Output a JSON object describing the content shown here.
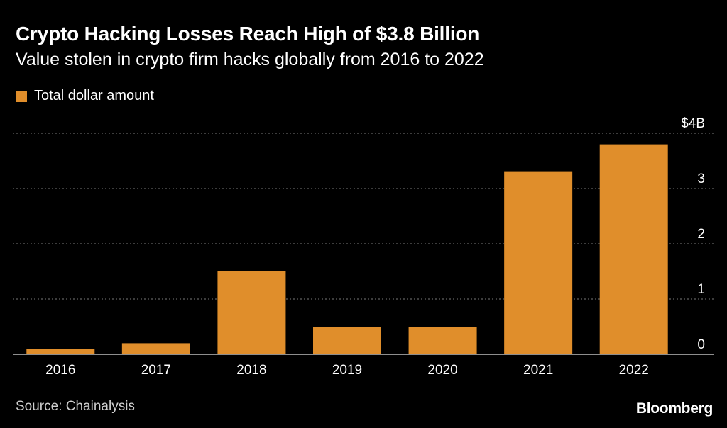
{
  "header": {
    "title": "Crypto Hacking Losses Reach High of $3.8 Billion",
    "subtitle": "Value stolen in crypto firm hacks globally from 2016 to 2022"
  },
  "legend": {
    "label": "Total dollar amount"
  },
  "footer": {
    "source": "Source: Chainalysis",
    "brand": "Bloomberg"
  },
  "colors": {
    "bar": "#e08e2b",
    "grid": "#7a7a7a",
    "axis": "#bdbdbd"
  },
  "chart_data": {
    "type": "bar",
    "title": "Crypto Hacking Losses Reach High of $3.8 Billion",
    "subtitle": "Value stolen in crypto firm hacks globally from 2016 to 2022",
    "categories": [
      "2016",
      "2017",
      "2018",
      "2019",
      "2020",
      "2021",
      "2022"
    ],
    "series": [
      {
        "name": "Total dollar amount",
        "values": [
          0.1,
          0.2,
          1.5,
          0.5,
          0.5,
          3.3,
          3.8
        ]
      }
    ],
    "ylim": [
      0,
      4
    ],
    "y_ticks": [
      {
        "value": 0,
        "label": "0"
      },
      {
        "value": 1,
        "label": "1"
      },
      {
        "value": 2,
        "label": "2"
      },
      {
        "value": 3,
        "label": "3"
      },
      {
        "value": 4,
        "label": "$4B"
      }
    ],
    "grid": true,
    "y_axis_position": "right",
    "legend_position": "top-left"
  }
}
